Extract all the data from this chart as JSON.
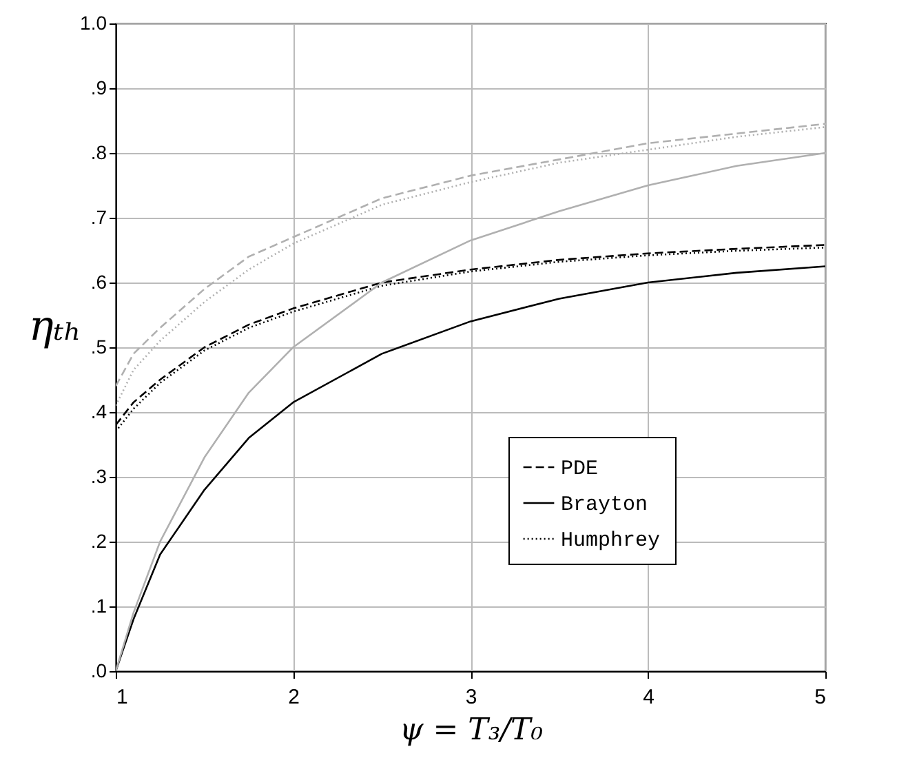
{
  "chart_data": {
    "type": "line",
    "xlabel": "ψ =  T₃/T₀",
    "ylabel": "ηₜₕ",
    "x": [
      1,
      1.1,
      1.25,
      1.5,
      1.75,
      2,
      2.5,
      3,
      3.5,
      4,
      4.5,
      5
    ],
    "series": [
      {
        "name": "PDE",
        "color": "#000000",
        "line_style": "dashed",
        "values": [
          0.38,
          0.415,
          0.45,
          0.5,
          0.535,
          0.56,
          0.6,
          0.62,
          0.635,
          0.645,
          0.652,
          0.658
        ]
      },
      {
        "name": "Brayton",
        "color": "#000000",
        "line_style": "solid",
        "values": [
          0,
          0.08,
          0.18,
          0.28,
          0.36,
          0.415,
          0.49,
          0.54,
          0.575,
          0.6,
          0.615,
          0.625
        ]
      },
      {
        "name": "Humphrey",
        "color": "#000000",
        "line_style": "dotted",
        "values": [
          0.37,
          0.405,
          0.445,
          0.495,
          0.53,
          0.555,
          0.595,
          0.617,
          0.632,
          0.642,
          0.649,
          0.654
        ]
      },
      {
        "color": "#b0b0b0",
        "line_style": "dashed",
        "values": [
          0.44,
          0.49,
          0.53,
          0.59,
          0.64,
          0.67,
          0.73,
          0.765,
          0.79,
          0.815,
          0.83,
          0.845
        ]
      },
      {
        "color": "#b0b0b0",
        "line_style": "solid",
        "values": [
          0,
          0.09,
          0.2,
          0.33,
          0.43,
          0.5,
          0.6,
          0.665,
          0.71,
          0.75,
          0.78,
          0.8
        ]
      },
      {
        "color": "#b0b0b0",
        "line_style": "dotted",
        "values": [
          0.41,
          0.465,
          0.51,
          0.57,
          0.62,
          0.66,
          0.72,
          0.755,
          0.785,
          0.805,
          0.825,
          0.84
        ]
      }
    ],
    "xlim": [
      1,
      5
    ],
    "xticks": [
      1,
      2,
      3,
      4,
      5
    ],
    "ylim": [
      0,
      1
    ],
    "yticks": [
      {
        "value": 0,
        "label": ".0"
      },
      {
        "value": 0.1,
        "label": ".1"
      },
      {
        "value": 0.2,
        "label": ".2"
      },
      {
        "value": 0.3,
        "label": ".3"
      },
      {
        "value": 0.4,
        "label": ".4"
      },
      {
        "value": 0.5,
        "label": ".5"
      },
      {
        "value": 0.6,
        "label": ".6"
      },
      {
        "value": 0.7,
        "label": ".7"
      },
      {
        "value": 0.8,
        "label": ".8"
      },
      {
        "value": 0.9,
        "label": ".9"
      },
      {
        "value": 1,
        "label": "1.0"
      }
    ],
    "grid": true,
    "legend": "bottom right"
  }
}
